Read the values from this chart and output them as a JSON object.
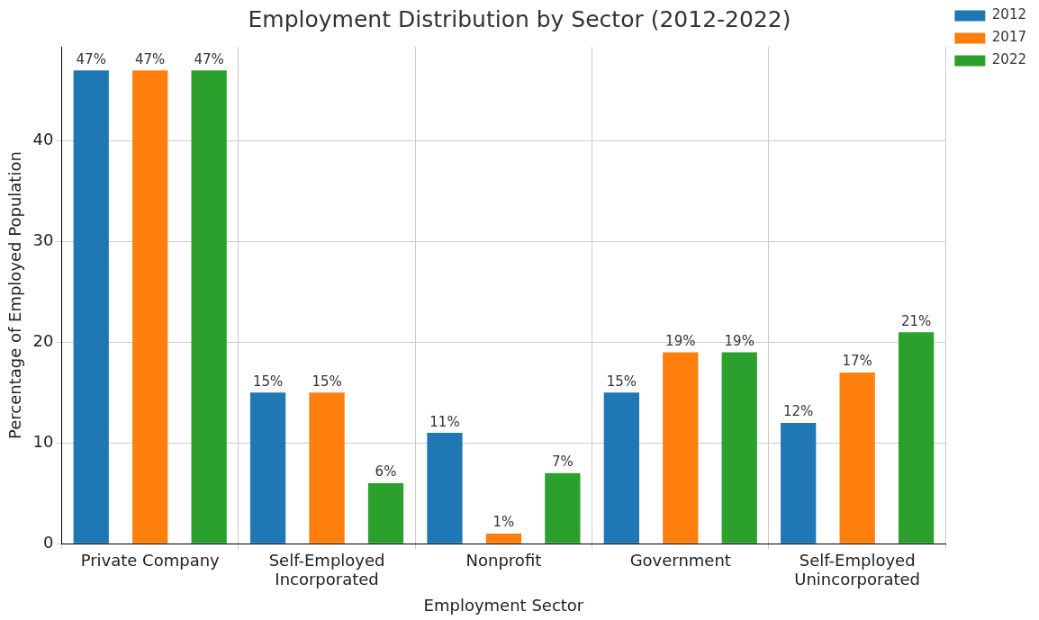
{
  "chart_data": {
    "type": "bar",
    "title": "Employment Distribution by Sector (2012-2022)",
    "xlabel": "Employment Sector",
    "ylabel": "Percentage of Employed Population",
    "categories": [
      "Private Company",
      "Self-Employed\nIncorporated",
      "Nonprofit",
      "Government",
      "Self-Employed\nUnincorporated"
    ],
    "series": [
      {
        "name": "2012",
        "color": "#1f77b4",
        "values": [
          47,
          15,
          11,
          15,
          12
        ],
        "value_labels": [
          "47%",
          "15%",
          "11%",
          "15%",
          "12%"
        ]
      },
      {
        "name": "2017",
        "color": "#ff7f0e",
        "values": [
          47,
          15,
          1,
          19,
          17
        ],
        "value_labels": [
          "47%",
          "15%",
          "1%",
          "19%",
          "17%"
        ]
      },
      {
        "name": "2022",
        "color": "#2ca02c",
        "values": [
          47,
          6,
          7,
          19,
          21
        ],
        "value_labels": [
          "47%",
          "6%",
          "7%",
          "19%",
          "21%"
        ]
      }
    ],
    "ylim": [
      0,
      49.35
    ],
    "yticks": [
      0,
      10,
      20,
      30,
      40
    ],
    "grid": true,
    "legend": "top right"
  }
}
